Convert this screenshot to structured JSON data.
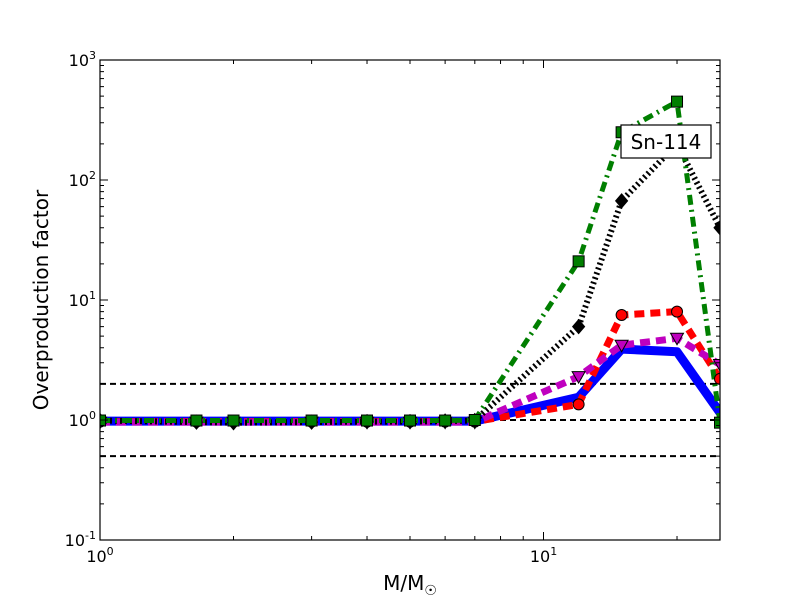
{
  "chart_data": {
    "type": "line",
    "xlabel": "M/M",
    "xlabel_sub": "☉",
    "ylabel": "Overproduction factor",
    "xscale": "log",
    "yscale": "log",
    "xlim": [
      1,
      25
    ],
    "ylim": [
      0.1,
      1000
    ],
    "x_ticks": [
      {
        "value": 1,
        "base": "10",
        "exp": "0"
      },
      {
        "value": 10,
        "base": "10",
        "exp": "1"
      }
    ],
    "y_ticks": [
      {
        "value": 0.1,
        "base": "10",
        "exp": "-1"
      },
      {
        "value": 1,
        "base": "10",
        "exp": "0"
      },
      {
        "value": 10,
        "base": "10",
        "exp": "1"
      },
      {
        "value": 100,
        "base": "10",
        "exp": "2"
      },
      {
        "value": 1000,
        "base": "10",
        "exp": "3"
      }
    ],
    "reference_lines": [
      0.5,
      1,
      2
    ],
    "annotation": "Sn-114",
    "annotation_position": "top-right",
    "grid": false,
    "series": [
      {
        "color": "#0000ff",
        "style": "solid",
        "marker": "none",
        "x": [
          1,
          1.65,
          2,
          3,
          4,
          5,
          6,
          7,
          12,
          15,
          20,
          25
        ],
        "y": [
          0.98,
          0.98,
          0.98,
          0.98,
          0.98,
          0.98,
          0.98,
          0.98,
          1.55,
          3.9,
          3.7,
          1.15
        ]
      },
      {
        "color": "#ff0000",
        "style": "dashed",
        "marker": "circle",
        "x": [
          1,
          1.65,
          2,
          3,
          4,
          5,
          6,
          7,
          12,
          15,
          20,
          25
        ],
        "y": [
          0.97,
          0.97,
          0.97,
          0.97,
          0.97,
          0.97,
          0.97,
          0.97,
          1.35,
          7.5,
          8.0,
          2.2
        ]
      },
      {
        "color": "#bf00bf",
        "style": "dashed",
        "marker": "triangle-down",
        "x": [
          1,
          1.65,
          2,
          3,
          4,
          5,
          6,
          7,
          12,
          15,
          20,
          25
        ],
        "y": [
          0.96,
          0.96,
          0.96,
          0.96,
          0.96,
          0.96,
          0.96,
          0.96,
          2.3,
          4.2,
          4.8,
          2.9
        ]
      },
      {
        "color": "#000000",
        "style": "dotted",
        "marker": "diamond",
        "x": [
          1,
          1.65,
          2,
          3,
          4,
          5,
          6,
          7,
          12,
          15,
          20,
          25
        ],
        "y": [
          0.99,
          0.96,
          0.95,
          0.96,
          0.97,
          0.97,
          0.98,
          0.99,
          6.0,
          67,
          200,
          40
        ]
      },
      {
        "color": "#007f00",
        "style": "dashdot",
        "marker": "square",
        "x": [
          1,
          1.65,
          2,
          3,
          4,
          5,
          6,
          7,
          12,
          15,
          20,
          25
        ],
        "y": [
          0.99,
          0.99,
          0.99,
          0.99,
          0.99,
          0.99,
          0.99,
          1.0,
          21,
          250,
          450,
          0.95
        ]
      }
    ]
  }
}
